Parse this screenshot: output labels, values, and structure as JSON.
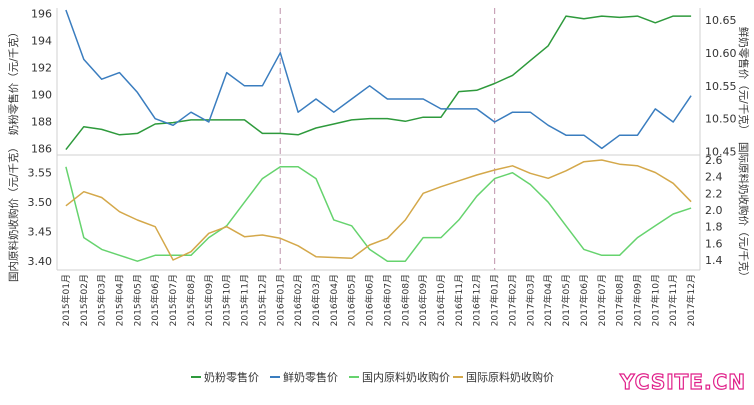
{
  "chart_data": [
    {
      "type": "line",
      "panel": "top",
      "left_axis_title": "奶粉零售价（元/千克）",
      "right_axis_title": "鲜奶零售价（元/千克）",
      "left_ylim": [
        185.5,
        196.4
      ],
      "left_ticks": [
        186,
        188,
        190,
        192,
        194,
        196
      ],
      "right_ylim": [
        10.445,
        10.668
      ],
      "right_ticks": [
        "10.45",
        "10.50",
        "10.55",
        "10.60",
        "10.65"
      ],
      "series": [
        {
          "name": "奶粉零售价",
          "axis": "left",
          "color": "#2e9a3c",
          "values": [
            185.9,
            187.6,
            187.4,
            187.0,
            187.1,
            187.8,
            187.9,
            188.1,
            188.1,
            188.1,
            188.1,
            187.1,
            187.1,
            187.0,
            187.5,
            187.8,
            188.1,
            188.2,
            188.2,
            188.0,
            188.3,
            188.3,
            190.2,
            190.3,
            190.8,
            191.4,
            192.5,
            193.6,
            195.8,
            195.6,
            195.8,
            195.7,
            195.8,
            195.3,
            195.8,
            195.8
          ]
        },
        {
          "name": "鲜奶零售价",
          "axis": "right",
          "color": "#3a7dbf",
          "values": [
            10.665,
            10.59,
            10.56,
            10.57,
            10.54,
            10.5,
            10.49,
            10.51,
            10.495,
            10.57,
            10.55,
            10.55,
            10.6,
            10.51,
            10.53,
            10.51,
            10.53,
            10.55,
            10.53,
            10.53,
            10.53,
            10.515,
            10.515,
            10.515,
            10.495,
            10.51,
            10.51,
            10.49,
            10.475,
            10.475,
            10.455,
            10.475,
            10.475,
            10.515,
            10.495,
            10.535
          ]
        }
      ]
    },
    {
      "type": "line",
      "panel": "bottom",
      "left_axis_title": "国内原料奶收购价（元/千克）",
      "right_axis_title": "国际原料奶收购价（元/千克）",
      "left_ylim": [
        3.385,
        3.58
      ],
      "left_ticks": [
        "3.40",
        "3.45",
        "3.50",
        "3.55"
      ],
      "right_ylim": [
        1.28,
        2.66
      ],
      "right_ticks": [
        "1.4",
        "1.6",
        "1.8",
        "2.0",
        "2.2",
        "2.4",
        "2.6"
      ],
      "series": [
        {
          "name": "国内原料奶收购价",
          "axis": "left",
          "color": "#66d36e",
          "values": [
            3.56,
            3.44,
            3.42,
            3.41,
            3.4,
            3.41,
            3.41,
            3.41,
            3.44,
            3.46,
            3.5,
            3.54,
            3.56,
            3.56,
            3.54,
            3.47,
            3.46,
            3.42,
            3.4,
            3.4,
            3.44,
            3.44,
            3.47,
            3.51,
            3.54,
            3.55,
            3.53,
            3.5,
            3.46,
            3.42,
            3.41,
            3.41,
            3.44,
            3.46,
            3.48,
            3.49
          ]
        },
        {
          "name": "国际原料奶收购价",
          "axis": "right",
          "color": "#d4a84a",
          "values": [
            2.05,
            2.22,
            2.15,
            1.98,
            1.88,
            1.8,
            1.4,
            1.5,
            1.72,
            1.8,
            1.68,
            1.7,
            1.66,
            1.57,
            1.44,
            1.43,
            1.42,
            1.58,
            1.66,
            1.88,
            2.2,
            2.28,
            2.35,
            2.42,
            2.48,
            2.53,
            2.44,
            2.38,
            2.47,
            2.58,
            2.6,
            2.55,
            2.53,
            2.45,
            2.32,
            2.1
          ]
        }
      ]
    }
  ],
  "x_categories": [
    "2015年01月",
    "2015年02月",
    "2015年03月",
    "2015年04月",
    "2015年05月",
    "2015年06月",
    "2015年07月",
    "2015年08月",
    "2015年09月",
    "2015年10月",
    "2015年11月",
    "2015年12月",
    "2016年01月",
    "2016年02月",
    "2016年03月",
    "2016年04月",
    "2016年05月",
    "2016年06月",
    "2016年07月",
    "2016年08月",
    "2016年09月",
    "2016年10月",
    "2016年11月",
    "2016年12月",
    "2017年01月",
    "2017年02月",
    "2017年03月",
    "2017年04月",
    "2017年05月",
    "2017年06月",
    "2017年07月",
    "2017年08月",
    "2017年09月",
    "2017年10月",
    "2017年11月",
    "2017年12月"
  ],
  "year_separators": [
    "2016年01月",
    "2017年01月"
  ],
  "separator_color": "#c9a3b8",
  "legend": [
    {
      "label": "奶粉零售价",
      "color": "#2e9a3c"
    },
    {
      "label": "鲜奶零售价",
      "color": "#3a7dbf"
    },
    {
      "label": "国内原料奶收购价",
      "color": "#66d36e"
    },
    {
      "label": "国际原料奶收购价",
      "color": "#d4a84a"
    }
  ],
  "watermark": "YCSITE.CN"
}
